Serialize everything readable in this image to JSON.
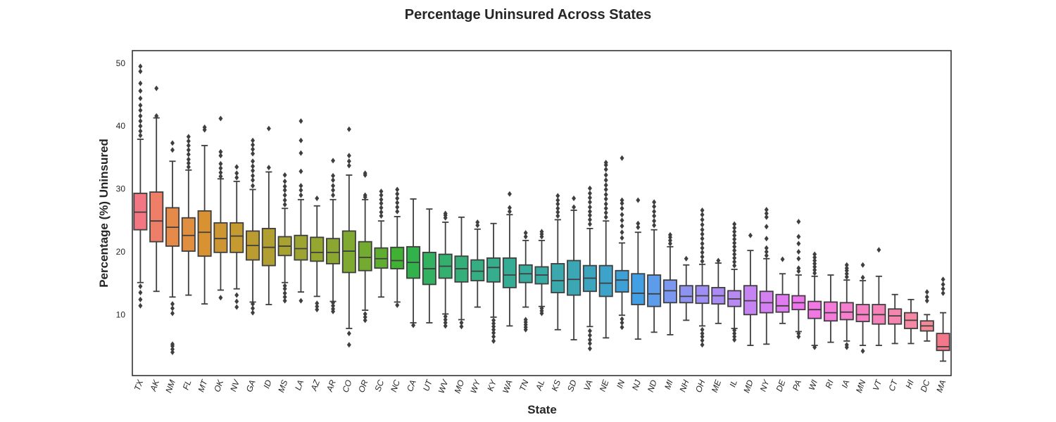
{
  "chart_data": {
    "type": "box",
    "title": "Percentage Uninsured Across States",
    "xlabel": "State",
    "ylabel": "Percentage (%) Uninsured",
    "ylim": [
      0.3,
      52
    ],
    "yticks": [
      "10",
      "20",
      "30",
      "40",
      "50"
    ],
    "grid": false,
    "boxes": [
      {
        "state": "TX",
        "color": "#f37783",
        "whislo": 15.1,
        "q1": 23.5,
        "med": 26.3,
        "q3": 29.3,
        "whishi": 37.9,
        "fliers": [
          11.4,
          12.4,
          13.5,
          14.5,
          38.5,
          39.2,
          40.0,
          40.8,
          41.6,
          42.5,
          43.3,
          44.4,
          45.6,
          46.8,
          48.7,
          49.5
        ]
      },
      {
        "state": "AK",
        "color": "#ee7e68",
        "whislo": 13.7,
        "q1": 21.6,
        "med": 24.9,
        "q3": 29.5,
        "whishi": 41.3,
        "fliers": [
          41.6,
          46.0
        ]
      },
      {
        "state": "NM",
        "color": "#e68a4a",
        "whislo": 12.8,
        "q1": 20.9,
        "med": 23.9,
        "q3": 27.0,
        "whishi": 34.4,
        "fliers": [
          4.0,
          4.5,
          5.0,
          5.3,
          10.2,
          11.0,
          11.7,
          36.2,
          37.3
        ]
      },
      {
        "state": "FL",
        "color": "#e08e3f",
        "whislo": 13.1,
        "q1": 20.1,
        "med": 22.6,
        "q3": 25.4,
        "whishi": 33.0,
        "fliers": [
          33.5,
          34.1,
          34.7,
          35.5,
          36.2,
          36.9,
          37.6,
          38.3
        ]
      },
      {
        "state": "MT",
        "color": "#d89231",
        "whislo": 11.7,
        "q1": 19.3,
        "med": 23.1,
        "q3": 26.5,
        "whishi": 36.9,
        "fliers": [
          39.4,
          39.8
        ]
      },
      {
        "state": "OK",
        "color": "#ce9632",
        "whislo": 13.9,
        "q1": 19.9,
        "med": 22.1,
        "q3": 24.6,
        "whishi": 31.6,
        "fliers": [
          12.7,
          32.0,
          32.6,
          33.3,
          34.0,
          35.3,
          35.9,
          41.2
        ]
      },
      {
        "state": "NV",
        "color": "#c59a31",
        "whislo": 14.1,
        "q1": 19.9,
        "med": 22.5,
        "q3": 24.6,
        "whishi": 31.2,
        "fliers": [
          11.2,
          12.1,
          13.1,
          31.8,
          32.5,
          33.5
        ]
      },
      {
        "state": "GA",
        "color": "#bb9c31",
        "whislo": 12.0,
        "q1": 18.7,
        "med": 21.0,
        "q3": 23.3,
        "whishi": 29.9,
        "fliers": [
          10.3,
          11.0,
          11.7,
          30.5,
          31.4,
          32.1,
          32.9,
          33.6,
          34.4,
          35.6,
          36.3,
          37.0,
          37.7
        ]
      },
      {
        "state": "ID",
        "color": "#b19f31",
        "whislo": 11.6,
        "q1": 17.8,
        "med": 20.7,
        "q3": 23.7,
        "whishi": 32.7,
        "fliers": [
          33.4,
          39.6
        ]
      },
      {
        "state": "MS",
        "color": "#a8a231",
        "whislo": 15.1,
        "q1": 19.4,
        "med": 20.9,
        "q3": 22.4,
        "whishi": 26.9,
        "fliers": [
          12.2,
          12.8,
          13.4,
          14.1,
          14.6,
          27.5,
          28.2,
          29.0,
          29.8,
          30.4,
          31.2,
          32.2
        ]
      },
      {
        "state": "LA",
        "color": "#9ea431",
        "whislo": 13.6,
        "q1": 18.7,
        "med": 20.5,
        "q3": 22.6,
        "whishi": 28.3,
        "fliers": [
          12.2,
          29.0,
          29.8,
          30.5,
          32.8,
          35.7,
          37.7,
          40.8
        ]
      },
      {
        "state": "AZ",
        "color": "#95a631",
        "whislo": 12.9,
        "q1": 18.5,
        "med": 19.9,
        "q3": 22.3,
        "whishi": 27.3,
        "fliers": [
          10.8,
          11.3,
          11.8,
          28.5
        ]
      },
      {
        "state": "AR",
        "color": "#8ba731",
        "whislo": 12.1,
        "q1": 18.1,
        "med": 19.9,
        "q3": 22.1,
        "whishi": 28.3,
        "fliers": [
          10.5,
          10.9,
          11.4,
          11.9,
          29.0,
          29.8,
          30.5,
          31.4,
          32.1,
          34.5
        ]
      },
      {
        "state": "CO",
        "color": "#80a931",
        "whislo": 7.8,
        "q1": 16.7,
        "med": 20.1,
        "q3": 23.3,
        "whishi": 32.2,
        "fliers": [
          5.2,
          7.0,
          33.7,
          34.4,
          35.3,
          39.5
        ]
      },
      {
        "state": "OR",
        "color": "#73ab31",
        "whislo": 10.7,
        "q1": 17.0,
        "med": 19.1,
        "q3": 21.6,
        "whishi": 28.3,
        "fliers": [
          9.1,
          9.6,
          10.1,
          28.7,
          29.0,
          32.2,
          32.5
        ]
      },
      {
        "state": "SC",
        "color": "#60ae31",
        "whislo": 12.8,
        "q1": 17.4,
        "med": 18.9,
        "q3": 20.6,
        "whishi": 24.9,
        "fliers": [
          25.7,
          26.3,
          27.0,
          27.7,
          28.3,
          29.0,
          29.6
        ]
      },
      {
        "state": "NC",
        "color": "#40b133",
        "whislo": 12.0,
        "q1": 17.3,
        "med": 18.6,
        "q3": 20.7,
        "whishi": 25.6,
        "fliers": [
          11.5,
          26.4,
          27.1,
          27.8,
          28.5,
          29.2,
          29.9
        ]
      },
      {
        "state": "CA",
        "color": "#32b24a",
        "whislo": 8.7,
        "q1": 15.8,
        "med": 18.3,
        "q3": 20.8,
        "whishi": 28.4,
        "fliers": [
          8.3
        ]
      },
      {
        "state": "UT",
        "color": "#34b160",
        "whislo": 8.7,
        "q1": 14.8,
        "med": 17.3,
        "q3": 19.9,
        "whishi": 26.8,
        "fliers": []
      },
      {
        "state": "WV",
        "color": "#34b06e",
        "whislo": 10.1,
        "q1": 15.8,
        "med": 17.7,
        "q3": 19.6,
        "whishi": 24.7,
        "fliers": [
          8.2,
          8.7,
          9.2,
          9.7,
          25.4,
          25.8,
          26.1
        ]
      },
      {
        "state": "MO",
        "color": "#35af7a",
        "whislo": 9.2,
        "q1": 15.2,
        "med": 17.3,
        "q3": 19.3,
        "whishi": 25.5,
        "fliers": [
          8.1,
          8.7
        ]
      },
      {
        "state": "WY",
        "color": "#36ae84",
        "whislo": 11.2,
        "q1": 15.4,
        "med": 16.9,
        "q3": 18.7,
        "whishi": 23.6,
        "fliers": [
          24.2,
          24.7
        ]
      },
      {
        "state": "KY",
        "color": "#36ad8d",
        "whislo": 9.6,
        "q1": 15.2,
        "med": 17.5,
        "q3": 19.0,
        "whishi": 24.5,
        "fliers": [
          5.8,
          6.5,
          7.1,
          7.6,
          8.1,
          8.6,
          9.1
        ]
      },
      {
        "state": "WA",
        "color": "#37ac95",
        "whislo": 8.2,
        "q1": 14.3,
        "med": 16.3,
        "q3": 19.0,
        "whishi": 25.9,
        "fliers": [
          26.4,
          27.0,
          29.2
        ]
      },
      {
        "state": "TN",
        "color": "#38ab9c",
        "whislo": 11.2,
        "q1": 15.1,
        "med": 16.5,
        "q3": 17.9,
        "whishi": 21.8,
        "fliers": [
          7.6,
          8.0,
          8.4,
          8.8,
          9.2,
          22.4,
          23.0
        ]
      },
      {
        "state": "AL",
        "color": "#39aaa4",
        "whislo": 11.3,
        "q1": 14.9,
        "med": 16.3,
        "q3": 17.6,
        "whishi": 21.8,
        "fliers": [
          10.2,
          10.6,
          11.0,
          22.4,
          22.8,
          23.2
        ]
      },
      {
        "state": "KS",
        "color": "#3aa8ac",
        "whislo": 7.6,
        "q1": 13.5,
        "med": 15.4,
        "q3": 18.1,
        "whishi": 25.1,
        "fliers": [
          25.7,
          26.3,
          26.9,
          27.6,
          28.2,
          28.9
        ]
      },
      {
        "state": "SD",
        "color": "#3ba7b4",
        "whislo": 6.0,
        "q1": 13.1,
        "med": 15.6,
        "q3": 18.6,
        "whishi": 26.6,
        "fliers": [
          27.1,
          28.5
        ]
      },
      {
        "state": "VA",
        "color": "#3ca5bd",
        "whislo": 8.1,
        "q1": 13.7,
        "med": 15.8,
        "q3": 17.8,
        "whishi": 23.7,
        "fliers": [
          4.6,
          5.4,
          6.0,
          6.7,
          7.4,
          24.4,
          25.1,
          25.8,
          26.4,
          27.1,
          27.9,
          28.6,
          29.3,
          30.1
        ]
      },
      {
        "state": "NE",
        "color": "#3ea3c8",
        "whislo": 6.3,
        "q1": 12.9,
        "med": 15.0,
        "q3": 17.8,
        "whishi": 24.9,
        "fliers": [
          25.5,
          26.2,
          26.9,
          27.6,
          28.4,
          29.1,
          29.9,
          30.6,
          31.4,
          32.2,
          33.1,
          33.8,
          34.2
        ]
      },
      {
        "state": "IN",
        "color": "#3ea1d6",
        "whislo": 9.9,
        "q1": 13.6,
        "med": 15.5,
        "q3": 17.0,
        "whishi": 21.4,
        "fliers": [
          8.0,
          8.7,
          9.3,
          22.2,
          23.1,
          24.1,
          25.0,
          25.9,
          26.9,
          27.7,
          28.2,
          34.9
        ]
      },
      {
        "state": "NJ",
        "color": "#429fe4",
        "whislo": 6.1,
        "q1": 11.6,
        "med": 13.4,
        "q3": 16.5,
        "whishi": 23.1,
        "fliers": [
          23.9,
          24.5,
          28.2
        ]
      },
      {
        "state": "ND",
        "color": "#5c9ceb",
        "whislo": 7.2,
        "q1": 11.3,
        "med": 13.3,
        "q3": 16.3,
        "whishi": 23.5,
        "fliers": [
          24.2,
          24.9,
          25.7,
          26.4,
          27.2,
          27.9
        ]
      },
      {
        "state": "MI",
        "color": "#7b97ef",
        "whislo": 6.8,
        "q1": 11.9,
        "med": 13.8,
        "q3": 15.5,
        "whishi": 20.8,
        "fliers": [
          21.3,
          21.8,
          22.3,
          22.7
        ]
      },
      {
        "state": "NH",
        "color": "#8e93f2",
        "whislo": 9.1,
        "q1": 11.9,
        "med": 12.9,
        "q3": 14.6,
        "whishi": 17.9,
        "fliers": [
          18.9
        ]
      },
      {
        "state": "OH",
        "color": "#9f8ff4",
        "whislo": 8.2,
        "q1": 11.8,
        "med": 13.0,
        "q3": 14.6,
        "whishi": 18.0,
        "fliers": [
          5.2,
          5.9,
          6.5,
          7.0,
          7.6,
          18.5,
          19.2,
          19.9,
          20.6,
          21.3,
          22.1,
          22.8,
          23.5,
          24.3,
          25.1,
          25.9,
          26.6
        ]
      },
      {
        "state": "ME",
        "color": "#ab8bf4",
        "whislo": 8.6,
        "q1": 11.7,
        "med": 13.0,
        "q3": 14.3,
        "whishi": 18.2,
        "fliers": [
          18.6
        ]
      },
      {
        "state": "IL",
        "color": "#b888f3",
        "whislo": 7.8,
        "q1": 11.3,
        "med": 12.5,
        "q3": 13.8,
        "whishi": 17.2,
        "fliers": [
          6.0,
          6.5,
          7.0,
          7.5,
          17.8,
          18.4,
          19.0,
          19.6,
          20.2,
          20.8,
          21.4,
          22.0,
          22.6,
          23.2,
          23.8,
          24.4
        ]
      },
      {
        "state": "MD",
        "color": "#c684f3",
        "whislo": 5.1,
        "q1": 10.0,
        "med": 12.2,
        "q3": 14.6,
        "whishi": 20.2,
        "fliers": [
          22.6
        ]
      },
      {
        "state": "NY",
        "color": "#d47ff2",
        "whislo": 5.3,
        "q1": 10.3,
        "med": 11.9,
        "q3": 13.7,
        "whishi": 18.9,
        "fliers": [
          19.4,
          20.0,
          20.6,
          22.1,
          24.0,
          25.5,
          26.1,
          26.7
        ]
      },
      {
        "state": "DE",
        "color": "#e17bf1",
        "whislo": 8.6,
        "q1": 10.4,
        "med": 11.4,
        "q3": 13.2,
        "whishi": 16.5,
        "fliers": [
          18.8
        ]
      },
      {
        "state": "PA",
        "color": "#ee75ed",
        "whislo": 7.3,
        "q1": 10.8,
        "med": 11.9,
        "q3": 13.0,
        "whishi": 16.3,
        "fliers": [
          6.5,
          7.0,
          16.9,
          17.4,
          18.9,
          20.0,
          21.3,
          22.4,
          24.8
        ]
      },
      {
        "state": "WI",
        "color": "#f377e3",
        "whislo": 5.1,
        "q1": 9.4,
        "med": 10.8,
        "q3": 12.1,
        "whishi": 16.1,
        "fliers": [
          4.8,
          16.6,
          17.1,
          17.6,
          18.1,
          18.6,
          19.1,
          19.6
        ]
      },
      {
        "state": "RI",
        "color": "#f47bd9",
        "whislo": 5.6,
        "q1": 9.0,
        "med": 10.3,
        "q3": 12.0,
        "whishi": 16.3,
        "fliers": []
      },
      {
        "state": "IA",
        "color": "#f57ece",
        "whislo": 5.8,
        "q1": 9.2,
        "med": 10.4,
        "q3": 11.9,
        "whishi": 15.5,
        "fliers": [
          4.8,
          5.2,
          16.0,
          16.5,
          17.0,
          17.4,
          17.9
        ]
      },
      {
        "state": "MN",
        "color": "#f580c4",
        "whislo": 5.1,
        "q1": 8.9,
        "med": 10.0,
        "q3": 11.6,
        "whishi": 15.4,
        "fliers": [
          4.2,
          15.9,
          17.9
        ]
      },
      {
        "state": "VT",
        "color": "#f583b9",
        "whislo": 5.1,
        "q1": 8.5,
        "med": 10.0,
        "q3": 11.6,
        "whishi": 16.1,
        "fliers": [
          20.3
        ]
      },
      {
        "state": "CT",
        "color": "#f585ae",
        "whislo": 5.4,
        "q1": 8.5,
        "med": 9.8,
        "q3": 10.9,
        "whishi": 13.2,
        "fliers": []
      },
      {
        "state": "HI",
        "color": "#f588a2",
        "whislo": 5.4,
        "q1": 7.8,
        "med": 9.1,
        "q3": 10.3,
        "whishi": 12.4,
        "fliers": []
      },
      {
        "state": "DC",
        "color": "#f58a97",
        "whislo": 5.8,
        "q1": 7.4,
        "med": 8.2,
        "q3": 9.0,
        "whishi": 10.0,
        "fliers": [
          12.2,
          12.8,
          13.6
        ]
      },
      {
        "state": "MA",
        "color": "#f3798a",
        "whislo": 2.6,
        "q1": 4.3,
        "med": 4.9,
        "q3": 7.0,
        "whishi": 10.3,
        "fliers": [
          13.4,
          14.1,
          14.8,
          15.6
        ]
      }
    ]
  }
}
